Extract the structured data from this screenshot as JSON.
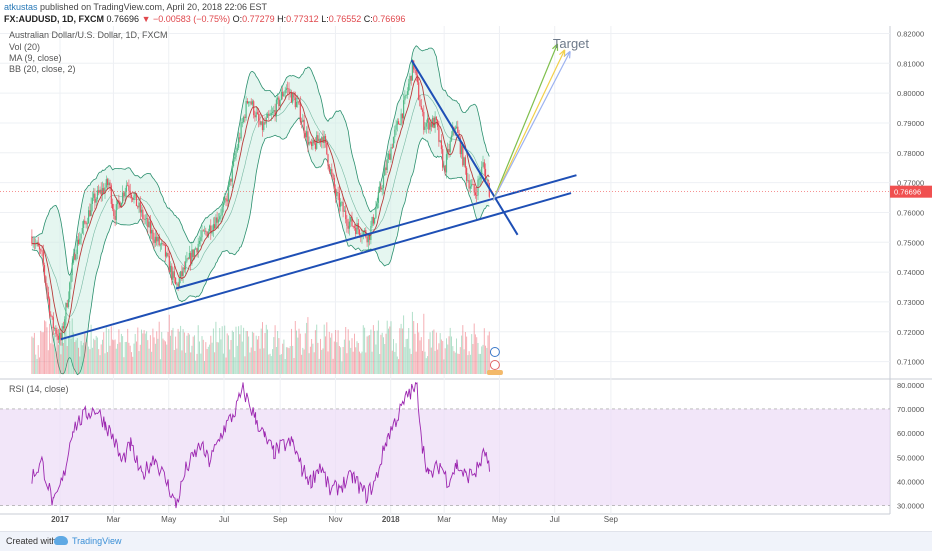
{
  "header": {
    "author": "atkustas",
    "published": "published on TradingView.com, April 20, 2018 22:06 EST",
    "symbol": "FX:AUDUSD, 1D, FXCM",
    "last_price": "0.76696",
    "change": "▼ −0.00583 (−0.75%)",
    "ohlc_labels": [
      "O:",
      "H:",
      "L:",
      "C:"
    ],
    "ohlc_values": [
      "0.77279",
      "0.77312",
      "0.76552",
      "0.76696"
    ]
  },
  "legend": {
    "instrument": "Australian Dollar/U.S. Dollar, 1D, FXCM",
    "vol": "Vol (20)",
    "ma": "MA (9, close)",
    "bb": "BB (20, close, 2)",
    "rsi": "RSI (14, close)"
  },
  "annotations": {
    "target": "Target"
  },
  "footer": {
    "created_with": "Created with",
    "brand": "TradingView"
  },
  "colors": {
    "up": "#53b987",
    "down": "#eb4d5c",
    "ma": "#b83b3b",
    "bb": "#2b8f6e",
    "bb_fill": "#cfeee3",
    "trend": "#1e4fb5",
    "rsi": "#9c27b0",
    "rsi_band": "#ecdcf7",
    "arrow_green": "#7fbf4d",
    "arrow_yellow": "#f2d04b",
    "arrow_blue": "#9db3f0",
    "price_tag": "#f05050"
  },
  "chart_data": [
    {
      "type": "candlestick",
      "title": "Australian Dollar/U.S. Dollar, 1D, FXCM",
      "x_tick_labels": [
        "2017",
        "Mar",
        "May",
        "Jul",
        "Sep",
        "Nov",
        "2018",
        "Mar",
        "May",
        "Jul",
        "Sep"
      ],
      "y_tick_labels": [
        "0.71000",
        "0.72000",
        "0.73000",
        "0.74000",
        "0.75000",
        "0.76000",
        "0.77000",
        "0.78000",
        "0.79000",
        "0.80000",
        "0.81000",
        "0.82000"
      ],
      "ylim": [
        0.7045,
        0.8225
      ],
      "last_price_label": "0.76696",
      "close_path": [
        [
          "2016-12-01",
          0.752
        ],
        [
          "2016-12-12",
          0.745
        ],
        [
          "2016-12-23",
          0.723
        ],
        [
          "2017-01-02",
          0.717
        ],
        [
          "2017-01-18",
          0.748
        ],
        [
          "2017-02-07",
          0.764
        ],
        [
          "2017-02-24",
          0.77
        ],
        [
          "2017-03-02",
          0.759
        ],
        [
          "2017-03-16",
          0.77
        ],
        [
          "2017-03-31",
          0.76
        ],
        [
          "2017-04-12",
          0.753
        ],
        [
          "2017-04-26",
          0.747
        ],
        [
          "2017-05-09",
          0.735
        ],
        [
          "2017-05-20",
          0.742
        ],
        [
          "2017-06-05",
          0.751
        ],
        [
          "2017-06-23",
          0.758
        ],
        [
          "2017-07-03",
          0.763
        ],
        [
          "2017-07-14",
          0.78
        ],
        [
          "2017-07-28",
          0.799
        ],
        [
          "2017-08-11",
          0.788
        ],
        [
          "2017-08-24",
          0.793
        ],
        [
          "2017-09-07",
          0.802
        ],
        [
          "2017-09-20",
          0.796
        ],
        [
          "2017-10-05",
          0.781
        ],
        [
          "2017-10-18",
          0.786
        ],
        [
          "2017-11-01",
          0.766
        ],
        [
          "2017-11-15",
          0.757
        ],
        [
          "2017-12-08",
          0.752
        ],
        [
          "2017-12-21",
          0.768
        ],
        [
          "2018-01-04",
          0.785
        ],
        [
          "2018-01-16",
          0.796
        ],
        [
          "2018-01-26",
          0.81
        ],
        [
          "2018-02-06",
          0.79
        ],
        [
          "2018-02-20",
          0.79
        ],
        [
          "2018-03-01",
          0.774
        ],
        [
          "2018-03-13",
          0.79
        ],
        [
          "2018-03-26",
          0.772
        ],
        [
          "2018-04-04",
          0.766
        ],
        [
          "2018-04-13",
          0.776
        ],
        [
          "2018-04-20",
          0.767
        ]
      ],
      "indicators": [
        "Vol (20)",
        "MA (9, close)",
        "BB (20, close, 2)"
      ],
      "trendlines": [
        {
          "from": [
            "2017-01-02",
            0.7175
          ],
          "to": [
            "2018-07-19",
            0.7665
          ]
        },
        {
          "from": [
            "2017-05-09",
            0.7345
          ],
          "to": [
            "2018-07-25",
            0.7725
          ]
        },
        {
          "from": [
            "2018-01-24",
            0.811
          ],
          "to": [
            "2018-05-21",
            0.7525
          ]
        }
      ],
      "target_label": "Target"
    },
    {
      "type": "line",
      "title": "RSI (14, close)",
      "y_tick_labels": [
        "30.0000",
        "40.0000",
        "50.0000",
        "60.0000",
        "70.0000",
        "80.0000"
      ],
      "ylim": [
        26.5,
        82
      ],
      "band": [
        30,
        70
      ],
      "points": [
        [
          "2016-12-01",
          42
        ],
        [
          "2016-12-12",
          48
        ],
        [
          "2016-12-25",
          30
        ],
        [
          "2017-01-05",
          42
        ],
        [
          "2017-01-15",
          62
        ],
        [
          "2017-01-30",
          68
        ],
        [
          "2017-02-10",
          70
        ],
        [
          "2017-02-20",
          64
        ],
        [
          "2017-03-01",
          58
        ],
        [
          "2017-03-10",
          48
        ],
        [
          "2017-03-20",
          55
        ],
        [
          "2017-04-01",
          42
        ],
        [
          "2017-04-15",
          50
        ],
        [
          "2017-05-01",
          38
        ],
        [
          "2017-05-09",
          30
        ],
        [
          "2017-05-20",
          45
        ],
        [
          "2017-06-05",
          55
        ],
        [
          "2017-06-15",
          48
        ],
        [
          "2017-07-01",
          62
        ],
        [
          "2017-07-12",
          68
        ],
        [
          "2017-07-22",
          78
        ],
        [
          "2017-08-05",
          66
        ],
        [
          "2017-08-15",
          58
        ],
        [
          "2017-08-25",
          52
        ],
        [
          "2017-09-05",
          55
        ],
        [
          "2017-09-15",
          56
        ],
        [
          "2017-09-25",
          45
        ],
        [
          "2017-10-05",
          40
        ],
        [
          "2017-10-15",
          47
        ],
        [
          "2017-10-26",
          36
        ],
        [
          "2017-11-06",
          38
        ],
        [
          "2017-11-20",
          42
        ],
        [
          "2017-12-05",
          34
        ],
        [
          "2017-12-15",
          40
        ],
        [
          "2017-12-28",
          58
        ],
        [
          "2018-01-10",
          68
        ],
        [
          "2018-01-20",
          76
        ],
        [
          "2018-01-30",
          79
        ],
        [
          "2018-02-05",
          55
        ],
        [
          "2018-02-12",
          42
        ],
        [
          "2018-02-25",
          47
        ],
        [
          "2018-03-05",
          40
        ],
        [
          "2018-03-15",
          47
        ],
        [
          "2018-03-25",
          42
        ],
        [
          "2018-04-05",
          44
        ],
        [
          "2018-04-15",
          52
        ],
        [
          "2018-04-20",
          44
        ]
      ]
    }
  ]
}
